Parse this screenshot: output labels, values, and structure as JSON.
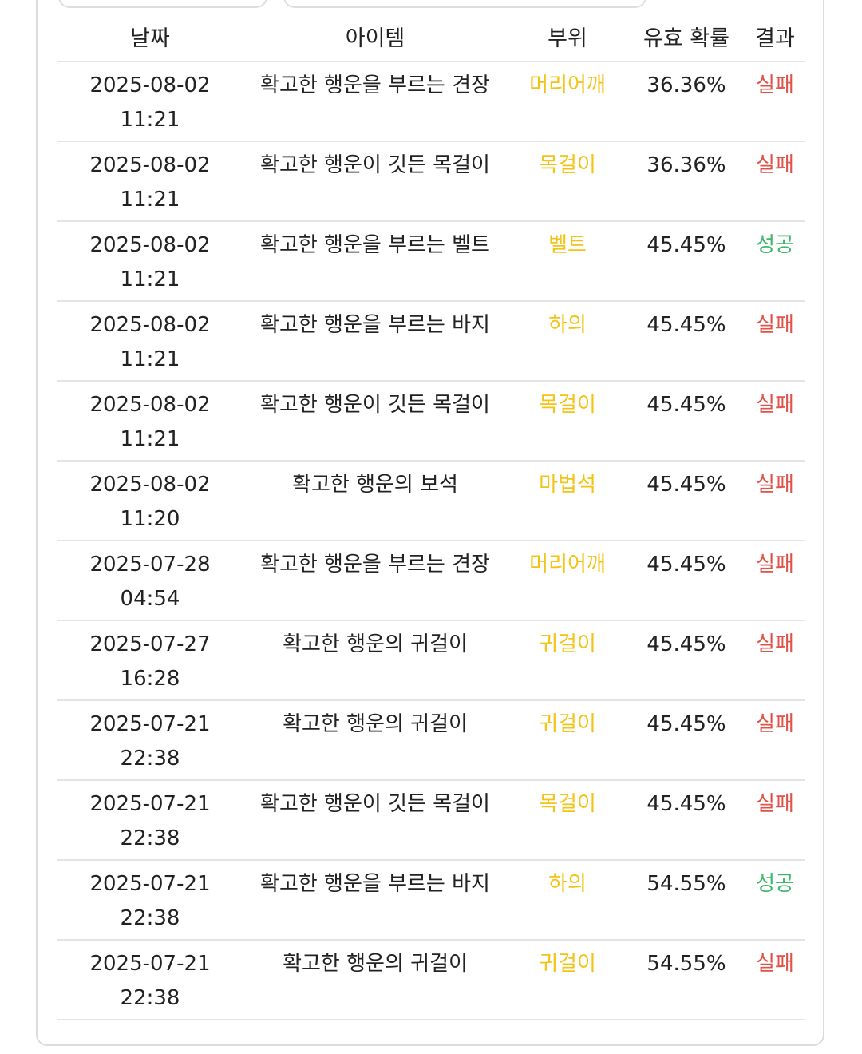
{
  "colors": {
    "part": "#f3c316",
    "fail": "#e0534a",
    "success": "#3fb86a"
  },
  "table": {
    "headers": {
      "date": "날짜",
      "item": "아이템",
      "part": "부위",
      "prob": "유효 확률",
      "result": "결과"
    },
    "rows": [
      {
        "date": "2025-08-02",
        "time": "11:21",
        "item": "확고한 행운을 부르는 견장",
        "part": "머리어깨",
        "prob": "36.36%",
        "result": "실패",
        "status": "fail"
      },
      {
        "date": "2025-08-02",
        "time": "11:21",
        "item": "확고한 행운이 깃든 목걸이",
        "part": "목걸이",
        "prob": "36.36%",
        "result": "실패",
        "status": "fail"
      },
      {
        "date": "2025-08-02",
        "time": "11:21",
        "item": "확고한 행운을 부르는 벨트",
        "part": "벨트",
        "prob": "45.45%",
        "result": "성공",
        "status": "success"
      },
      {
        "date": "2025-08-02",
        "time": "11:21",
        "item": "확고한 행운을 부르는 바지",
        "part": "하의",
        "prob": "45.45%",
        "result": "실패",
        "status": "fail"
      },
      {
        "date": "2025-08-02",
        "time": "11:21",
        "item": "확고한 행운이 깃든 목걸이",
        "part": "목걸이",
        "prob": "45.45%",
        "result": "실패",
        "status": "fail"
      },
      {
        "date": "2025-08-02",
        "time": "11:20",
        "item": "확고한 행운의 보석",
        "part": "마법석",
        "prob": "45.45%",
        "result": "실패",
        "status": "fail"
      },
      {
        "date": "2025-07-28",
        "time": "04:54",
        "item": "확고한 행운을 부르는 견장",
        "part": "머리어깨",
        "prob": "45.45%",
        "result": "실패",
        "status": "fail"
      },
      {
        "date": "2025-07-27",
        "time": "16:28",
        "item": "확고한 행운의 귀걸이",
        "part": "귀걸이",
        "prob": "45.45%",
        "result": "실패",
        "status": "fail"
      },
      {
        "date": "2025-07-21",
        "time": "22:38",
        "item": "확고한 행운의 귀걸이",
        "part": "귀걸이",
        "prob": "45.45%",
        "result": "실패",
        "status": "fail"
      },
      {
        "date": "2025-07-21",
        "time": "22:38",
        "item": "확고한 행운이 깃든 목걸이",
        "part": "목걸이",
        "prob": "45.45%",
        "result": "실패",
        "status": "fail"
      },
      {
        "date": "2025-07-21",
        "time": "22:38",
        "item": "확고한 행운을 부르는 바지",
        "part": "하의",
        "prob": "54.55%",
        "result": "성공",
        "status": "success"
      },
      {
        "date": "2025-07-21",
        "time": "22:38",
        "item": "확고한 행운의 귀걸이",
        "part": "귀걸이",
        "prob": "54.55%",
        "result": "실패",
        "status": "fail"
      }
    ]
  }
}
